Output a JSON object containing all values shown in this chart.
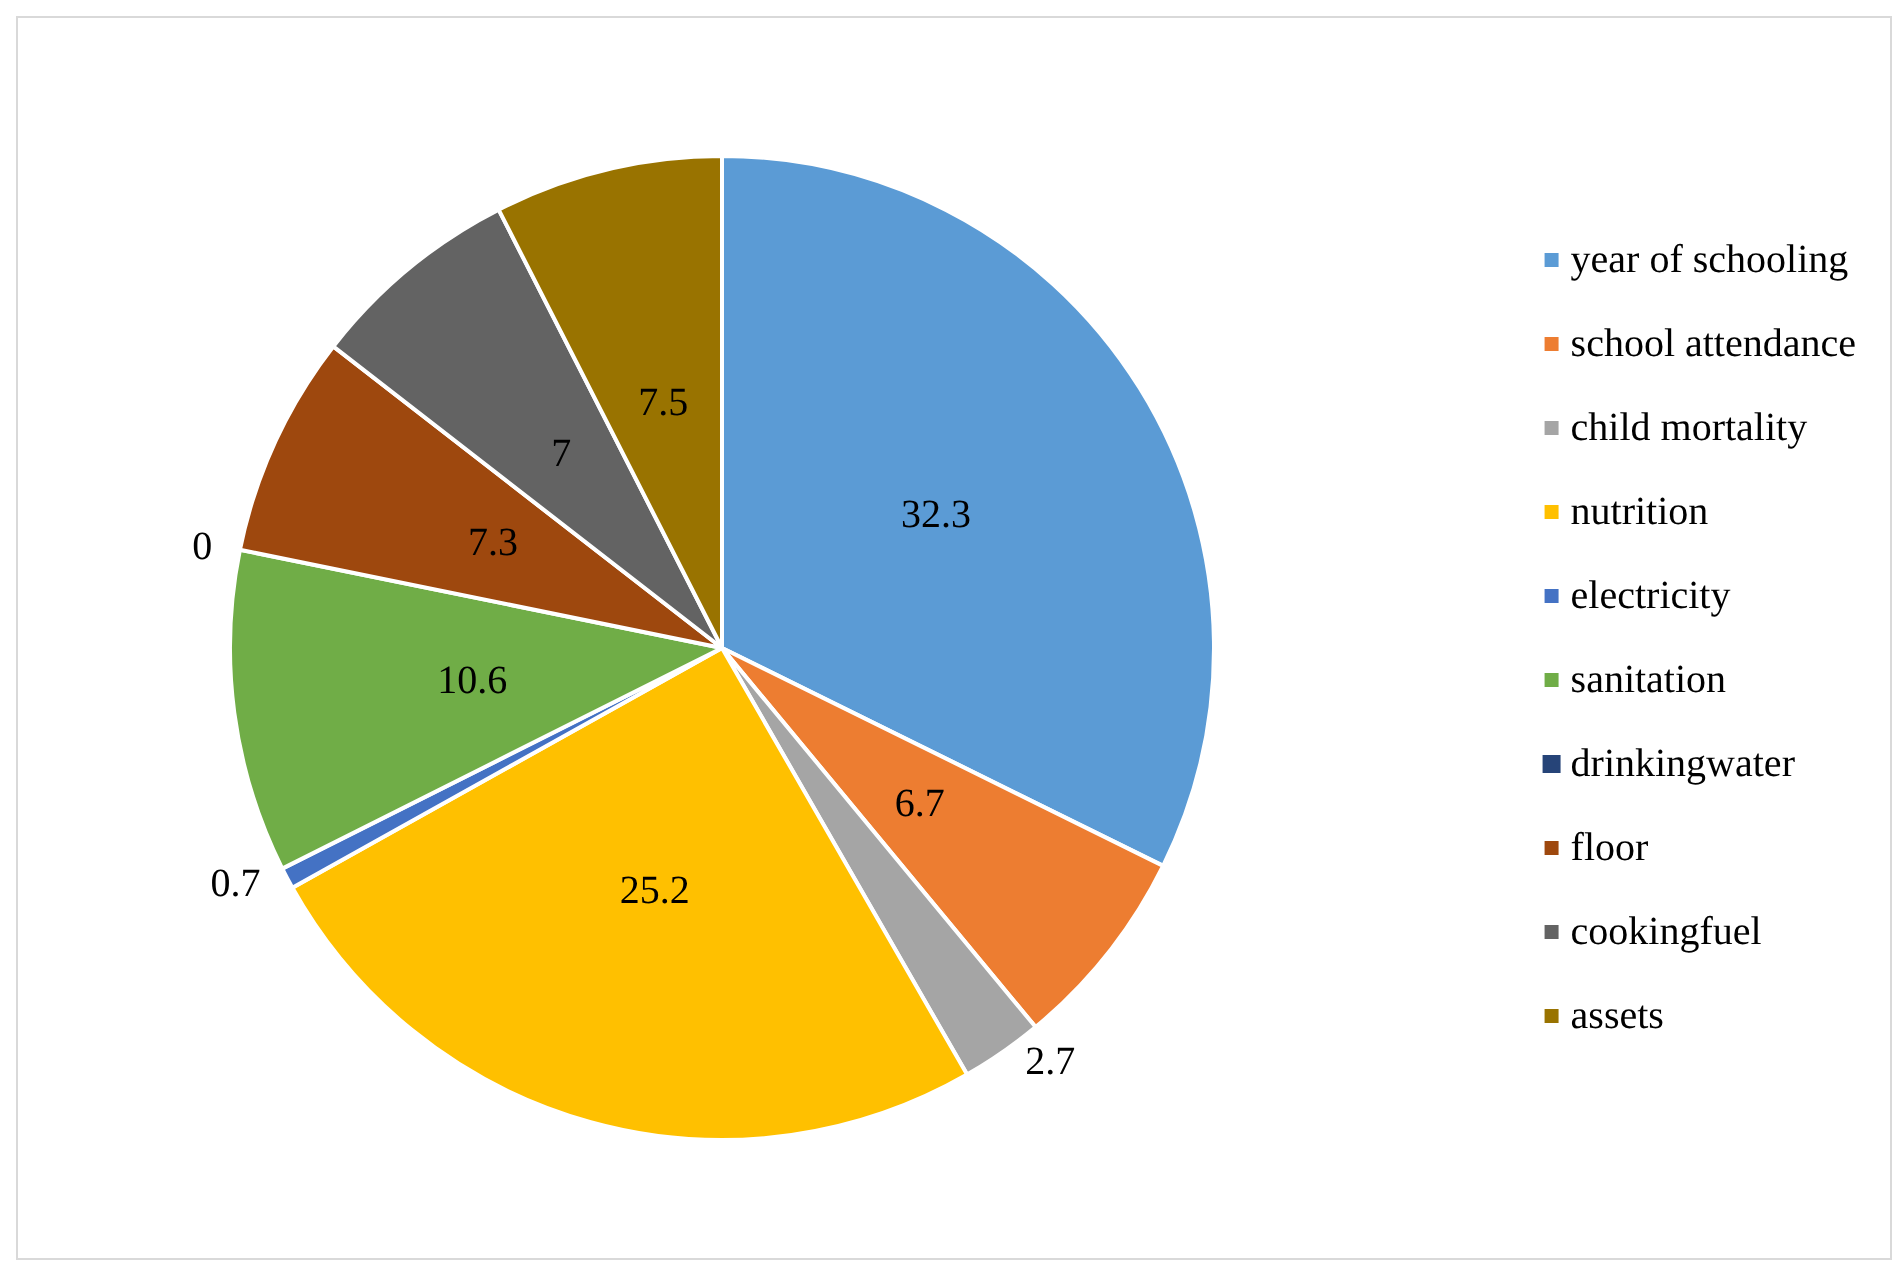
{
  "chart_data": {
    "type": "pie",
    "categories": [
      "year of schooling",
      "school attendance",
      "child mortality",
      "nutrition",
      "electricity",
      "sanitation",
      "drinkingwater",
      "floor",
      "cookingfuel",
      "assets"
    ],
    "values": [
      32.3,
      6.7,
      2.7,
      25.2,
      0.7,
      10.6,
      0,
      7.3,
      7,
      7.5
    ],
    "colors": [
      "#5b9bd5",
      "#ed7d31",
      "#a5a5a5",
      "#ffc000",
      "#4472c4",
      "#70ad47",
      "#264478",
      "#9e480e",
      "#636363",
      "#997300"
    ],
    "value_labels": [
      "32.3",
      "6.7",
      "2.7",
      "25.2",
      "0.7",
      "10.6",
      "0",
      "7.3",
      "7",
      "7.5"
    ],
    "legend": "right"
  }
}
